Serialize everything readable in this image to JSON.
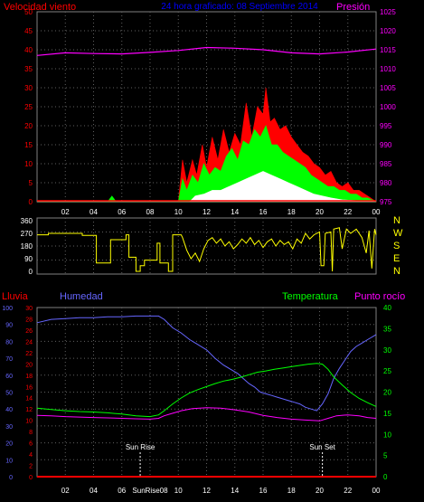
{
  "header": {
    "wind_label": "Velocidad viento",
    "title": "24 hora graficado: 08 Septiembre 2014",
    "pressure_label": "Presión"
  },
  "lower_header": {
    "rain_label": "Lluvia",
    "humidity_label": "Humedad",
    "temperature_label": "Temperatura",
    "dewpoint_label": "Punto rocío"
  },
  "colors": {
    "wind": "#ff0000",
    "gust": "#00ff00",
    "wind_light": "#ffffff",
    "pressure": "#ff00ff",
    "direction": "#ffff00",
    "rain": "#ff0000",
    "humidity": "#6666ff",
    "temperature": "#00ff00",
    "dewpoint": "#ff00ff",
    "title": "#0000ff"
  },
  "chart_data": [
    {
      "type": "area",
      "name": "wind-pressure",
      "x_ticks": [
        "02",
        "04",
        "06",
        "08",
        "10",
        "12",
        "14",
        "16",
        "18",
        "20",
        "22",
        "00"
      ],
      "x_range": [
        0,
        24
      ],
      "ylim_left": [
        0,
        50
      ],
      "y_ticks_left": [
        "0",
        "5",
        "10",
        "15",
        "20",
        "25",
        "30",
        "35",
        "40",
        "45",
        "50"
      ],
      "ylim_right": [
        975,
        1025
      ],
      "y_ticks_right": [
        "975",
        "980",
        "985",
        "990",
        "995",
        "1000",
        "1005",
        "1010",
        "1015",
        "1020",
        "1025"
      ],
      "wind_speed": [
        [
          0,
          0
        ],
        [
          1,
          0
        ],
        [
          2,
          0
        ],
        [
          3,
          0
        ],
        [
          5,
          0
        ],
        [
          5.3,
          1.5
        ],
        [
          5.6,
          0
        ],
        [
          7,
          0
        ],
        [
          9,
          0
        ],
        [
          10,
          0
        ],
        [
          10.3,
          6
        ],
        [
          10.6,
          3
        ],
        [
          11,
          7
        ],
        [
          11.4,
          5
        ],
        [
          11.8,
          10
        ],
        [
          12.2,
          7
        ],
        [
          12.6,
          9
        ],
        [
          13,
          8
        ],
        [
          13.4,
          12
        ],
        [
          13.8,
          14
        ],
        [
          14.2,
          11
        ],
        [
          14.6,
          16
        ],
        [
          15,
          15
        ],
        [
          15.4,
          19
        ],
        [
          15.8,
          17
        ],
        [
          16.2,
          20
        ],
        [
          16.6,
          15
        ],
        [
          17,
          15
        ],
        [
          17.4,
          13
        ],
        [
          17.8,
          12
        ],
        [
          18.2,
          11
        ],
        [
          18.6,
          10
        ],
        [
          19,
          9
        ],
        [
          19.4,
          7
        ],
        [
          19.8,
          6
        ],
        [
          20.2,
          5
        ],
        [
          20.6,
          4
        ],
        [
          21,
          4
        ],
        [
          21.4,
          3
        ],
        [
          21.8,
          3
        ],
        [
          22.2,
          2
        ],
        [
          22.6,
          2
        ],
        [
          23,
          1
        ],
        [
          23.4,
          1
        ],
        [
          24,
          0
        ]
      ],
      "wind_gust": [
        [
          0,
          0
        ],
        [
          10,
          0
        ],
        [
          10.3,
          11
        ],
        [
          10.6,
          5
        ],
        [
          11,
          11
        ],
        [
          11.3,
          7
        ],
        [
          11.7,
          15
        ],
        [
          12,
          9
        ],
        [
          12.4,
          17
        ],
        [
          12.8,
          11
        ],
        [
          13.2,
          19
        ],
        [
          13.6,
          13
        ],
        [
          14,
          18
        ],
        [
          14.4,
          15
        ],
        [
          14.8,
          26
        ],
        [
          15.2,
          17
        ],
        [
          15.6,
          25
        ],
        [
          16,
          23
        ],
        [
          16.2,
          30
        ],
        [
          16.5,
          21
        ],
        [
          16.8,
          22
        ],
        [
          17.2,
          19
        ],
        [
          17.6,
          20
        ],
        [
          18,
          17
        ],
        [
          18.4,
          15
        ],
        [
          18.8,
          13
        ],
        [
          19.2,
          12
        ],
        [
          19.6,
          10
        ],
        [
          20,
          9
        ],
        [
          20.4,
          7
        ],
        [
          20.8,
          8
        ],
        [
          21.2,
          5
        ],
        [
          21.6,
          4
        ],
        [
          22,
          5
        ],
        [
          22.4,
          3
        ],
        [
          22.8,
          3
        ],
        [
          23.2,
          2
        ],
        [
          23.6,
          1
        ],
        [
          24,
          0
        ]
      ],
      "wind_light": [
        [
          0,
          0
        ],
        [
          10.8,
          0
        ],
        [
          11.2,
          1.5
        ],
        [
          11.8,
          2
        ],
        [
          12.4,
          3
        ],
        [
          13,
          3
        ],
        [
          13.6,
          4
        ],
        [
          14.2,
          5
        ],
        [
          14.8,
          6
        ],
        [
          15.4,
          7
        ],
        [
          16,
          8
        ],
        [
          16.6,
          7
        ],
        [
          17.2,
          6
        ],
        [
          17.8,
          5
        ],
        [
          18.4,
          4
        ],
        [
          19,
          3
        ],
        [
          19.6,
          2
        ],
        [
          20.2,
          1.5
        ],
        [
          20.8,
          1
        ],
        [
          21.6,
          0.5
        ],
        [
          24,
          0
        ]
      ],
      "pressure": [
        [
          0,
          1013.5
        ],
        [
          2,
          1014.2
        ],
        [
          4,
          1014.0
        ],
        [
          6,
          1013.9
        ],
        [
          8,
          1014.3
        ],
        [
          10,
          1014.8
        ],
        [
          12,
          1015.6
        ],
        [
          14,
          1015.4
        ],
        [
          16,
          1015.0
        ],
        [
          18,
          1014.2
        ],
        [
          20,
          1013.9
        ],
        [
          22,
          1014.4
        ],
        [
          24,
          1015.2
        ]
      ]
    },
    {
      "type": "line",
      "name": "wind-direction",
      "x_range": [
        0,
        24
      ],
      "ylim": [
        0,
        360
      ],
      "y_ticks": [
        "0",
        "90",
        "180",
        "270",
        "360"
      ],
      "right_labels": [
        "N",
        "W",
        "S",
        "E",
        "N"
      ],
      "direction": [
        [
          0,
          260
        ],
        [
          0.8,
          260
        ],
        [
          0.8,
          270
        ],
        [
          1.5,
          270
        ],
        [
          3.2,
          270
        ],
        [
          3.2,
          255
        ],
        [
          4.2,
          255
        ],
        [
          4.2,
          60
        ],
        [
          5.2,
          60
        ],
        [
          5.2,
          225
        ],
        [
          6.3,
          225
        ],
        [
          6.3,
          260
        ],
        [
          6.5,
          260
        ],
        [
          6.5,
          100
        ],
        [
          7.0,
          100
        ],
        [
          7.0,
          0
        ],
        [
          7.3,
          0
        ],
        [
          7.3,
          40
        ],
        [
          7.6,
          40
        ],
        [
          7.6,
          80
        ],
        [
          8.5,
          80
        ],
        [
          8.5,
          200
        ],
        [
          8.7,
          200
        ],
        [
          8.7,
          60
        ],
        [
          9.3,
          60
        ],
        [
          9.3,
          0
        ],
        [
          9.6,
          0
        ],
        [
          9.6,
          260
        ],
        [
          10.2,
          260
        ],
        [
          10.3,
          240
        ],
        [
          10.6,
          150
        ],
        [
          10.9,
          90
        ],
        [
          11.2,
          130
        ],
        [
          11.5,
          70
        ],
        [
          11.8,
          160
        ],
        [
          12.1,
          220
        ],
        [
          12.4,
          240
        ],
        [
          12.7,
          200
        ],
        [
          13.0,
          230
        ],
        [
          13.3,
          180
        ],
        [
          13.6,
          210
        ],
        [
          13.9,
          160
        ],
        [
          14.2,
          190
        ],
        [
          14.5,
          230
        ],
        [
          14.8,
          200
        ],
        [
          15.1,
          240
        ],
        [
          15.4,
          190
        ],
        [
          15.7,
          220
        ],
        [
          16.0,
          170
        ],
        [
          16.3,
          210
        ],
        [
          16.6,
          230
        ],
        [
          16.9,
          180
        ],
        [
          17.2,
          220
        ],
        [
          17.5,
          190
        ],
        [
          17.8,
          210
        ],
        [
          18.1,
          160
        ],
        [
          18.4,
          230
        ],
        [
          18.7,
          200
        ],
        [
          19.0,
          270
        ],
        [
          19.3,
          230
        ],
        [
          19.6,
          260
        ],
        [
          20.0,
          280
        ],
        [
          20.1,
          40
        ],
        [
          20.3,
          40
        ],
        [
          20.4,
          270
        ],
        [
          20.8,
          280
        ],
        [
          20.9,
          0
        ],
        [
          21.0,
          300
        ],
        [
          21.4,
          310
        ],
        [
          21.6,
          160
        ],
        [
          21.9,
          300
        ],
        [
          22.2,
          270
        ],
        [
          22.6,
          300
        ],
        [
          23.0,
          240
        ],
        [
          23.3,
          130
        ],
        [
          23.5,
          290
        ],
        [
          23.7,
          20
        ],
        [
          23.9,
          300
        ],
        [
          24,
          260
        ]
      ]
    },
    {
      "type": "line",
      "name": "rain-humidity-temperature",
      "x_ticks": [
        "02",
        "04",
        "06",
        "SunRise08",
        "10",
        "12",
        "14",
        "16",
        "18",
        "20",
        "22",
        "00"
      ],
      "x_range": [
        0,
        24
      ],
      "ylim_humidity": [
        0,
        100
      ],
      "y_ticks_humidity": [
        "0",
        "10",
        "20",
        "30",
        "40",
        "50",
        "60",
        "70",
        "80",
        "90",
        "100"
      ],
      "ylim_rain": [
        0,
        30
      ],
      "y_ticks_rain": [
        "0",
        "2",
        "4",
        "6",
        "8",
        "10",
        "12",
        "14",
        "16",
        "18",
        "20",
        "22",
        "24",
        "26",
        "28",
        "30"
      ],
      "ylim_temp": [
        0,
        40
      ],
      "y_ticks_temp": [
        "0",
        "5",
        "10",
        "15",
        "20",
        "25",
        "30",
        "35",
        "40"
      ],
      "annotations": [
        {
          "label": "Sun Rise",
          "x": 7.3
        },
        {
          "label": "Sun Set",
          "x": 20.2
        }
      ],
      "rain": [
        [
          0,
          0
        ],
        [
          24,
          0
        ]
      ],
      "humidity": [
        [
          0,
          91
        ],
        [
          1,
          93
        ],
        [
          2,
          93.5
        ],
        [
          3,
          94
        ],
        [
          4,
          94
        ],
        [
          5,
          94.5
        ],
        [
          6,
          94.5
        ],
        [
          7,
          95
        ],
        [
          8,
          95
        ],
        [
          8.6,
          95
        ],
        [
          9,
          93
        ],
        [
          9.6,
          88
        ],
        [
          10.2,
          85
        ],
        [
          10.8,
          81
        ],
        [
          11.4,
          78
        ],
        [
          12,
          75
        ],
        [
          12.6,
          70
        ],
        [
          13.2,
          66
        ],
        [
          13.8,
          63
        ],
        [
          14.2,
          61
        ],
        [
          14.6,
          58
        ],
        [
          15,
          55
        ],
        [
          15.4,
          53
        ],
        [
          15.8,
          50
        ],
        [
          16.2,
          49
        ],
        [
          16.6,
          48
        ],
        [
          17,
          47
        ],
        [
          17.4,
          46
        ],
        [
          17.8,
          45
        ],
        [
          18.2,
          44
        ],
        [
          18.6,
          43
        ],
        [
          19,
          41
        ],
        [
          19.4,
          40
        ],
        [
          19.8,
          39
        ],
        [
          20.2,
          43
        ],
        [
          20.6,
          49
        ],
        [
          21,
          58
        ],
        [
          21.4,
          64
        ],
        [
          21.8,
          69
        ],
        [
          22.2,
          74
        ],
        [
          22.6,
          77
        ],
        [
          23,
          79
        ],
        [
          23.4,
          81
        ],
        [
          23.8,
          83
        ],
        [
          24,
          84
        ]
      ],
      "temperature": [
        [
          0,
          16.2
        ],
        [
          1,
          15.9
        ],
        [
          2,
          15.6
        ],
        [
          3,
          15.4
        ],
        [
          4,
          15.3
        ],
        [
          5,
          15.1
        ],
        [
          6,
          14.8
        ],
        [
          7,
          14.4
        ],
        [
          8,
          14.2
        ],
        [
          8.6,
          14.6
        ],
        [
          9,
          15.6
        ],
        [
          9.6,
          17.2
        ],
        [
          10.2,
          18.6
        ],
        [
          10.8,
          19.8
        ],
        [
          11.4,
          20.6
        ],
        [
          12,
          21.3
        ],
        [
          12.6,
          22.0
        ],
        [
          13.2,
          22.6
        ],
        [
          13.8,
          23.0
        ],
        [
          14.4,
          23.5
        ],
        [
          15,
          24.1
        ],
        [
          15.6,
          24.7
        ],
        [
          16.2,
          25.0
        ],
        [
          16.8,
          25.4
        ],
        [
          17.4,
          25.7
        ],
        [
          18,
          26.0
        ],
        [
          18.6,
          26.3
        ],
        [
          19.2,
          26.6
        ],
        [
          19.8,
          26.8
        ],
        [
          20.2,
          26.6
        ],
        [
          20.6,
          25.4
        ],
        [
          21,
          23.6
        ],
        [
          21.6,
          21.7
        ],
        [
          22.2,
          19.9
        ],
        [
          22.8,
          18.5
        ],
        [
          23.4,
          17.5
        ],
        [
          24,
          16.6
        ]
      ],
      "dewpoint": [
        [
          0,
          14.5
        ],
        [
          1,
          14.4
        ],
        [
          2,
          14.2
        ],
        [
          3,
          14.1
        ],
        [
          4,
          14.0
        ],
        [
          5,
          13.9
        ],
        [
          6,
          13.8
        ],
        [
          7,
          13.7
        ],
        [
          8,
          13.6
        ],
        [
          8.6,
          13.8
        ],
        [
          9,
          14.4
        ],
        [
          9.6,
          15.0
        ],
        [
          10.2,
          15.6
        ],
        [
          11,
          16.1
        ],
        [
          12,
          16.3
        ],
        [
          13,
          16.2
        ],
        [
          14,
          15.8
        ],
        [
          15,
          15.3
        ],
        [
          16,
          14.5
        ],
        [
          17,
          14.0
        ],
        [
          18,
          13.6
        ],
        [
          19,
          13.4
        ],
        [
          20,
          13.2
        ],
        [
          20.6,
          13.8
        ],
        [
          21.2,
          14.4
        ],
        [
          22,
          14.6
        ],
        [
          22.8,
          14.4
        ],
        [
          23.4,
          14.0
        ],
        [
          24,
          13.8
        ]
      ]
    }
  ]
}
